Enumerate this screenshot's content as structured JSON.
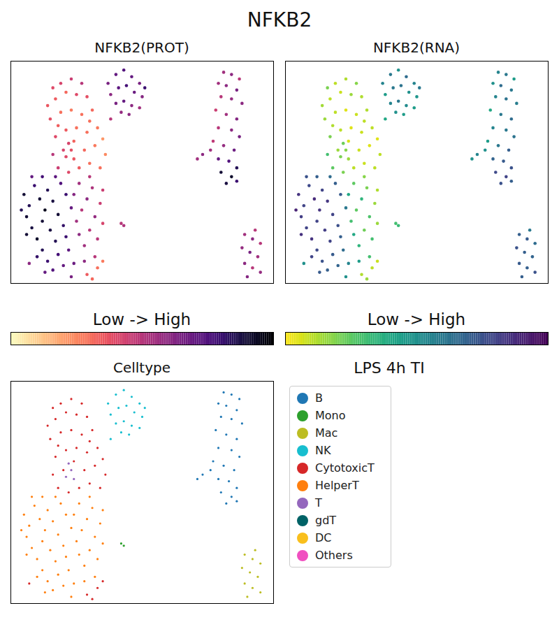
{
  "title": "NFKB2",
  "x": [
    5,
    7,
    6,
    8,
    10,
    12,
    14,
    16,
    9,
    11,
    13,
    12,
    15,
    17,
    18,
    20,
    14,
    16,
    18,
    20,
    21,
    22,
    19,
    21,
    23,
    8,
    4,
    6,
    10,
    13,
    24,
    17,
    12,
    25,
    27,
    29,
    31,
    26,
    28,
    30,
    32,
    34,
    33,
    26,
    30,
    35,
    24,
    28,
    23,
    32,
    35,
    18,
    22,
    26,
    30,
    34,
    16,
    20,
    28,
    32,
    36,
    17,
    21,
    25,
    29,
    33,
    15,
    19,
    23,
    27,
    31,
    17,
    21,
    25,
    29,
    19,
    23,
    27,
    16,
    24,
    14,
    30,
    35,
    18,
    29,
    33,
    31,
    35,
    7,
    21,
    23,
    22,
    24,
    37,
    40,
    43,
    46,
    49,
    38,
    41,
    44,
    47,
    50,
    40,
    43,
    46,
    49,
    42,
    45,
    38,
    51,
    81,
    84,
    87,
    79,
    82,
    86,
    80,
    84,
    88,
    78,
    82,
    86,
    79,
    84,
    87,
    77,
    81,
    85,
    79,
    83,
    86,
    80,
    84,
    82,
    86,
    73,
    71,
    76,
    89,
    92,
    95,
    88,
    91,
    94,
    89,
    92,
    95,
    90,
    93,
    42,
    43
  ],
  "y": [
    40,
    35,
    30,
    25,
    20,
    15,
    10,
    6,
    44,
    38,
    33,
    28,
    24,
    19,
    13,
    8,
    42,
    37,
    31,
    26,
    21,
    15,
    45,
    40,
    34,
    48,
    33,
    22,
    12,
    5,
    9,
    48,
    48,
    28,
    33,
    38,
    43,
    22,
    17,
    24,
    30,
    36,
    20,
    45,
    48,
    42,
    40,
    10,
    3,
    12,
    27,
    52,
    50,
    52,
    54,
    52,
    58,
    60,
    60,
    62,
    58,
    66,
    69,
    70,
    68,
    70,
    74,
    77,
    78,
    76,
    78,
    83,
    86,
    85,
    84,
    90,
    92,
    90,
    88,
    64,
    80,
    73,
    65,
    71,
    4,
    7,
    2,
    10,
    9,
    57,
    60,
    63,
    56,
    90,
    94,
    96,
    93,
    90,
    85,
    88,
    89,
    86,
    84,
    81,
    82,
    80,
    79,
    77,
    76,
    74,
    88,
    95,
    94,
    92,
    90,
    89,
    87,
    84,
    83,
    81,
    78,
    76,
    74,
    70,
    69,
    66,
    64,
    62,
    60,
    56,
    55,
    52,
    50,
    48,
    45,
    46,
    58,
    56,
    60,
    22,
    20,
    18,
    16,
    14,
    12,
    9,
    7,
    5,
    3,
    24,
    27,
    26
  ],
  "chart_data": [
    {
      "type": "scatter",
      "title": "NFKB2(PROT)",
      "xlim": [
        0,
        100
      ],
      "ylim": [
        0,
        100
      ],
      "tick_labels": false,
      "color": "magma_r",
      "colorbar": {
        "label": "Low  ->  High",
        "clim": [
          0,
          1
        ]
      },
      "values": [
        0.9,
        0.85,
        0.9,
        0.88,
        0.92,
        0.85,
        0.8,
        0.75,
        0.8,
        0.9,
        0.95,
        0.9,
        0.88,
        0.85,
        0.78,
        0.7,
        0.85,
        0.88,
        0.9,
        0.82,
        0.8,
        0.72,
        0.75,
        0.8,
        0.7,
        0.7,
        0.85,
        0.9,
        0.82,
        0.7,
        0.68,
        0.72,
        0.78,
        0.55,
        0.5,
        0.6,
        0.52,
        0.6,
        0.55,
        0.5,
        0.58,
        0.45,
        0.5,
        0.55,
        0.5,
        0.45,
        0.62,
        0.6,
        0.65,
        0.5,
        0.42,
        0.45,
        0.4,
        0.35,
        0.3,
        0.3,
        0.5,
        0.42,
        0.32,
        0.28,
        0.25,
        0.4,
        0.35,
        0.3,
        0.3,
        0.28,
        0.38,
        0.3,
        0.28,
        0.3,
        0.32,
        0.35,
        0.32,
        0.4,
        0.38,
        0.42,
        0.45,
        0.5,
        0.4,
        0.33,
        0.36,
        0.3,
        0.22,
        0.34,
        0.35,
        0.3,
        0.32,
        0.28,
        0.6,
        0.4,
        0.38,
        0.42,
        0.36,
        0.65,
        0.7,
        0.75,
        0.7,
        0.65,
        0.6,
        0.72,
        0.78,
        0.68,
        0.62,
        0.65,
        0.7,
        0.6,
        0.55,
        0.58,
        0.6,
        0.5,
        0.8,
        0.55,
        0.6,
        0.5,
        0.55,
        0.6,
        0.65,
        0.5,
        0.58,
        0.6,
        0.45,
        0.55,
        0.62,
        0.5,
        0.6,
        0.65,
        0.48,
        0.58,
        0.68,
        0.7,
        0.75,
        0.85,
        0.9,
        0.92,
        0.88,
        0.8,
        0.6,
        0.55,
        0.55,
        0.55,
        0.6,
        0.5,
        0.58,
        0.65,
        0.55,
        0.6,
        0.5,
        0.58,
        0.62,
        0.5,
        0.5,
        0.52
      ]
    },
    {
      "type": "scatter",
      "title": "NFKB2(RNA)",
      "xlim": [
        0,
        100
      ],
      "ylim": [
        0,
        100
      ],
      "tick_labels": false,
      "color": "viridis_r",
      "colorbar": {
        "label": "Low  ->  High",
        "clim": [
          0,
          1
        ]
      },
      "values": [
        0.85,
        0.8,
        0.82,
        0.8,
        0.85,
        0.78,
        0.75,
        0.7,
        0.78,
        0.88,
        0.85,
        0.8,
        0.82,
        0.8,
        0.72,
        0.68,
        0.8,
        0.84,
        0.8,
        0.76,
        0.7,
        0.65,
        0.7,
        0.72,
        0.6,
        0.75,
        0.9,
        0.86,
        0.8,
        0.72,
        0.55,
        0.65,
        0.7,
        0.3,
        0.25,
        0.35,
        0.2,
        0.4,
        0.35,
        0.22,
        0.28,
        0.15,
        0.3,
        0.25,
        0.18,
        0.12,
        0.4,
        0.45,
        0.5,
        0.3,
        0.15,
        0.25,
        0.2,
        0.1,
        0.08,
        0.1,
        0.3,
        0.15,
        0.08,
        0.05,
        0.1,
        0.2,
        0.1,
        0.05,
        0.08,
        0.1,
        0.15,
        0.1,
        0.05,
        0.08,
        0.12,
        0.1,
        0.08,
        0.15,
        0.12,
        0.1,
        0.12,
        0.18,
        0.2,
        0.06,
        0.14,
        0.1,
        0.05,
        0.12,
        0.12,
        0.1,
        0.15,
        0.08,
        0.5,
        0.2,
        0.18,
        0.22,
        0.15,
        0.55,
        0.6,
        0.5,
        0.65,
        0.55,
        0.45,
        0.6,
        0.62,
        0.5,
        0.48,
        0.55,
        0.6,
        0.52,
        0.45,
        0.5,
        0.45,
        0.4,
        0.6,
        0.55,
        0.6,
        0.45,
        0.5,
        0.65,
        0.6,
        0.55,
        0.62,
        0.58,
        0.4,
        0.6,
        0.65,
        0.55,
        0.6,
        0.62,
        0.45,
        0.6,
        0.7,
        0.68,
        0.72,
        0.75,
        0.78,
        0.8,
        0.75,
        0.7,
        0.55,
        0.5,
        0.5,
        0.7,
        0.72,
        0.65,
        0.75,
        0.7,
        0.68,
        0.72,
        0.7,
        0.75,
        0.7,
        0.6,
        0.3,
        0.32
      ]
    },
    {
      "type": "scatter",
      "title": "Celltype",
      "xlim": [
        0,
        100
      ],
      "ylim": [
        0,
        100
      ],
      "tick_labels": false,
      "legend_title": "LPS 4h TI",
      "series": [
        {
          "name": "B",
          "color": "#1f77b4"
        },
        {
          "name": "Mono",
          "color": "#2ca02c"
        },
        {
          "name": "Mac",
          "color": "#bcbd22"
        },
        {
          "name": "NK",
          "color": "#17becf"
        },
        {
          "name": "CytotoxicT",
          "color": "#d62728"
        },
        {
          "name": "HelperT",
          "color": "#ff7f0e"
        },
        {
          "name": "T",
          "color": "#9467bd"
        },
        {
          "name": "gdT",
          "color": "#006266"
        },
        {
          "name": "DC",
          "color": "#f9bf1c"
        },
        {
          "name": "Others",
          "color": "#f04fc0"
        }
      ],
      "values": [
        "HelperT",
        "HelperT",
        "HelperT",
        "HelperT",
        "HelperT",
        "HelperT",
        "HelperT",
        "HelperT",
        "HelperT",
        "HelperT",
        "HelperT",
        "HelperT",
        "HelperT",
        "HelperT",
        "HelperT",
        "HelperT",
        "HelperT",
        "HelperT",
        "HelperT",
        "HelperT",
        "HelperT",
        "HelperT",
        "HelperT",
        "HelperT",
        "HelperT",
        "HelperT",
        "HelperT",
        "HelperT",
        "HelperT",
        "HelperT",
        "HelperT",
        "HelperT",
        "HelperT",
        "HelperT",
        "HelperT",
        "HelperT",
        "HelperT",
        "HelperT",
        "HelperT",
        "HelperT",
        "HelperT",
        "HelperT",
        "HelperT",
        "HelperT",
        "HelperT",
        "HelperT",
        "HelperT",
        "HelperT",
        "HelperT",
        "HelperT",
        "HelperT",
        "CytotoxicT",
        "CytotoxicT",
        "CytotoxicT",
        "CytotoxicT",
        "CytotoxicT",
        "CytotoxicT",
        "CytotoxicT",
        "CytotoxicT",
        "CytotoxicT",
        "CytotoxicT",
        "CytotoxicT",
        "CytotoxicT",
        "CytotoxicT",
        "CytotoxicT",
        "CytotoxicT",
        "CytotoxicT",
        "CytotoxicT",
        "CytotoxicT",
        "CytotoxicT",
        "CytotoxicT",
        "CytotoxicT",
        "CytotoxicT",
        "CytotoxicT",
        "CytotoxicT",
        "CytotoxicT",
        "CytotoxicT",
        "CytotoxicT",
        "CytotoxicT",
        "CytotoxicT",
        "CytotoxicT",
        "CytotoxicT",
        "CytotoxicT",
        "CytotoxicT",
        "CytotoxicT",
        "CytotoxicT",
        "CytotoxicT",
        "CytotoxicT",
        "CytotoxicT",
        "T",
        "T",
        "T",
        "T",
        "NK",
        "NK",
        "NK",
        "NK",
        "NK",
        "NK",
        "NK",
        "NK",
        "NK",
        "NK",
        "NK",
        "NK",
        "NK",
        "NK",
        "NK",
        "NK",
        "NK",
        "NK",
        "B",
        "B",
        "B",
        "B",
        "B",
        "B",
        "B",
        "B",
        "B",
        "B",
        "B",
        "B",
        "B",
        "B",
        "B",
        "B",
        "B",
        "B",
        "B",
        "B",
        "B",
        "B",
        "B",
        "B",
        "B",
        "B",
        "B",
        "B",
        "Mac",
        "Mac",
        "Mac",
        "Mac",
        "Mac",
        "Mac",
        "Mac",
        "Mac",
        "Mac",
        "Mac",
        "Mac",
        "Mono",
        "Mono"
      ]
    }
  ]
}
